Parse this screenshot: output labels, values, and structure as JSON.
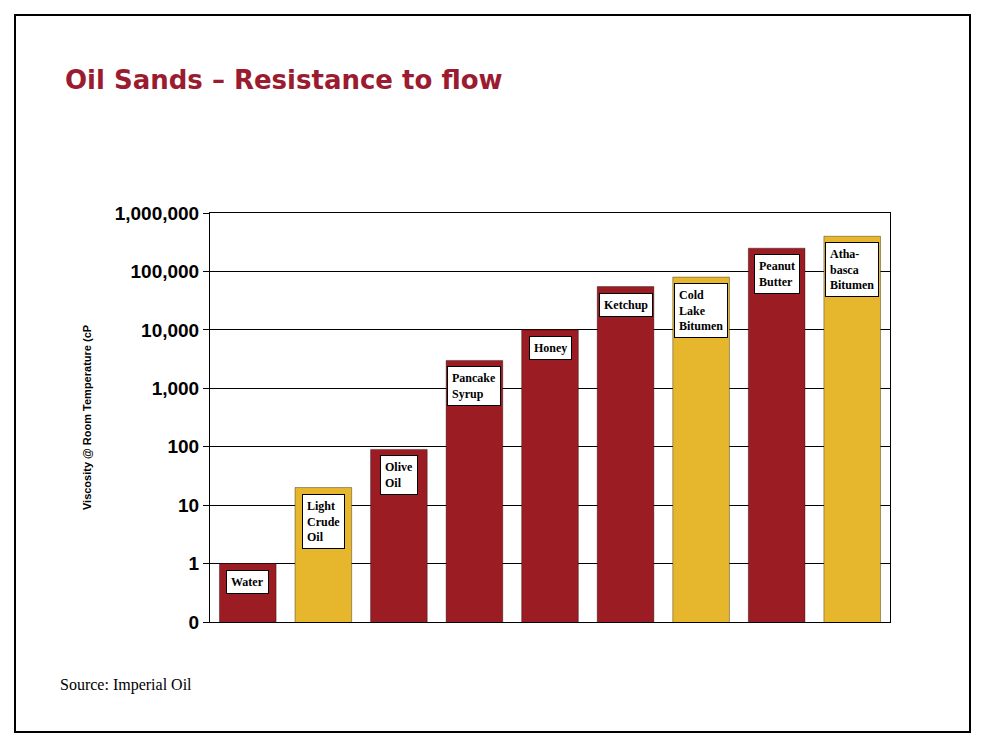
{
  "chart_data": {
    "type": "bar",
    "title": "Oil Sands – Resistance to flow",
    "ylabel": "Viscosity @ Room Temperature (cP",
    "source": "Source: Imperial Oil",
    "categories": [
      "Water",
      "Light\nCrude\nOil",
      "Olive\nOil",
      "Pancake\nSyrup",
      "Honey",
      "Ketchup",
      "Cold\nLake\nBitumen",
      "Peanut\nButter",
      "Atha-\nbasca\nBitumen"
    ],
    "values": [
      1,
      20,
      90,
      3000,
      10000,
      55000,
      80000,
      250000,
      400000
    ],
    "colors": [
      "#9b1c22",
      "#e6b62c",
      "#9b1c22",
      "#9b1c22",
      "#9b1c22",
      "#9b1c22",
      "#e6b62c",
      "#9b1c22",
      "#e6b62c"
    ],
    "log": "y",
    "ylim": [
      0.1,
      1000000
    ],
    "yticks": [
      {
        "value": 0.1,
        "label": "0"
      },
      1,
      10,
      100,
      {
        "value": 1000,
        "label": "1,000"
      },
      {
        "value": 10000,
        "label": "10,000"
      },
      {
        "value": 100000,
        "label": "100,000"
      },
      {
        "value": 1000000,
        "label": "1,000,000"
      }
    ],
    "grid": true,
    "tick_labels": "y"
  }
}
